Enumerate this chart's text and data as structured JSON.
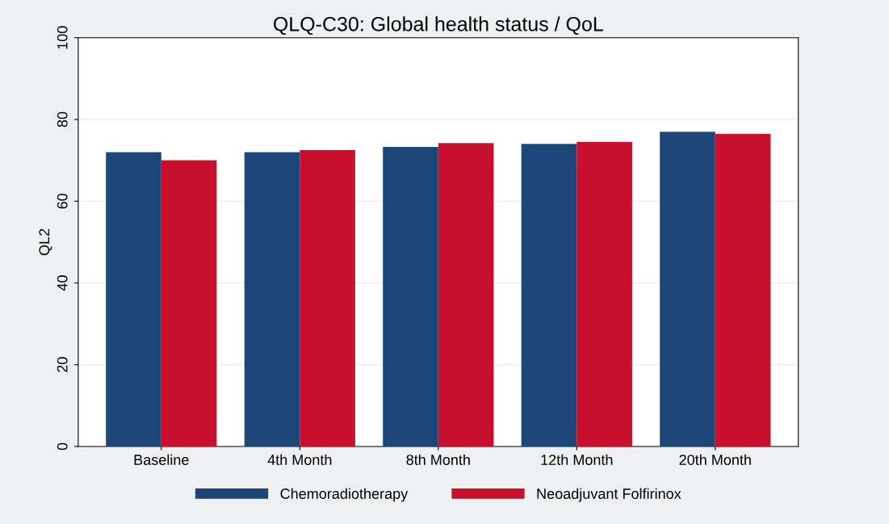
{
  "chart_data": {
    "type": "bar",
    "title": "QLQ-C30: Global health status / QoL",
    "ylabel": "QL2",
    "categories": [
      "Baseline",
      "4th Month",
      "8th Month",
      "12th Month",
      "20th Month"
    ],
    "series": [
      {
        "name": "Chemoradiotherapy",
        "color": "#1c4677",
        "values": [
          72,
          72,
          73.3,
          74,
          77
        ]
      },
      {
        "name": "Neoadjuvant Folfirinox",
        "color": "#c8102e",
        "values": [
          70,
          72.5,
          74.2,
          74.5,
          76.5
        ]
      }
    ],
    "ylim": [
      0,
      100
    ],
    "yticks": [
      0,
      20,
      40,
      60,
      80,
      100
    ],
    "grid": "y",
    "legend": "bottom"
  }
}
